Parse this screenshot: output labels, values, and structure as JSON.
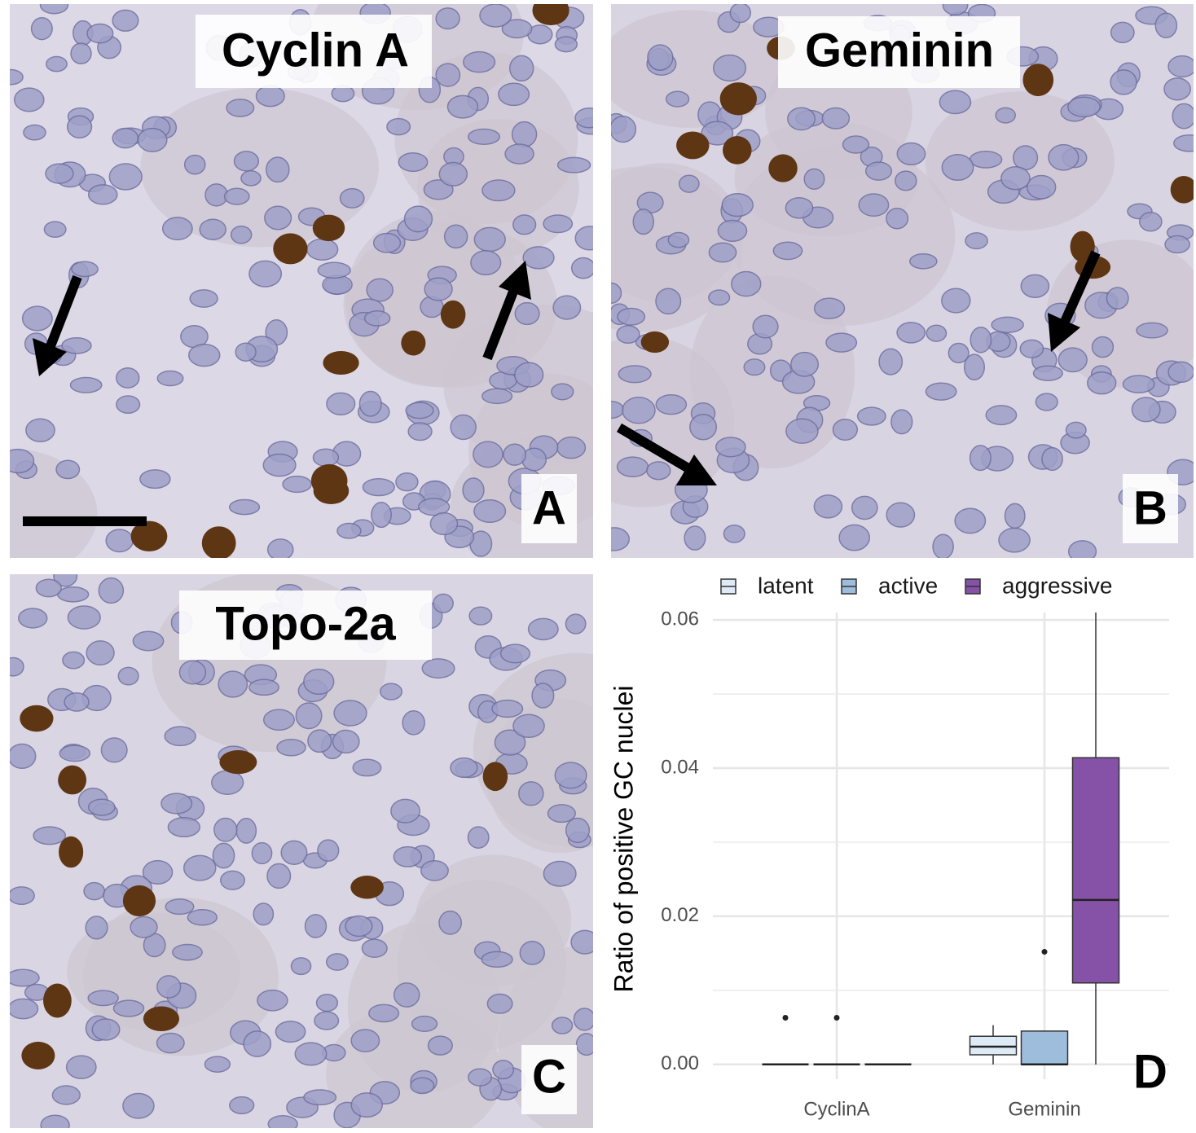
{
  "panels": [
    {
      "title": "Cyclin A",
      "label": "A"
    },
    {
      "title": "Geminin",
      "label": "B"
    },
    {
      "title": "Topo-2a",
      "label": "C"
    }
  ],
  "chart_data": {
    "type": "box",
    "panel_label": "D",
    "y_label": "Ratio of positive GC nuclei",
    "categories": [
      "CyclinA",
      "Geminin"
    ],
    "ylim": [
      -0.002,
      0.061
    ],
    "yticks": [
      {
        "value": 0,
        "label": "0.00"
      },
      0.02,
      0.04,
      0.06
    ],
    "minor_yticks": [
      0.01,
      0.03,
      0.05
    ],
    "grid": true,
    "legend": "top",
    "series": [
      {
        "name": "latent",
        "color": "#deebf7",
        "values": [
          {
            "min": 0,
            "q1": 0,
            "median": 0,
            "q3": 0,
            "max": 0,
            "outliers": [
              0.0063
            ]
          },
          {
            "min": 0,
            "q1": 0.0013,
            "median": 0.0024,
            "q3": 0.0038,
            "max": 0.0053,
            "outliers": []
          }
        ]
      },
      {
        "name": "active",
        "color": "#9ebcdc",
        "values": [
          {
            "min": 0,
            "q1": 0,
            "median": 0,
            "q3": 0,
            "max": 0,
            "outliers": [
              0.0063
            ]
          },
          {
            "min": 0,
            "q1": 0,
            "median": 0,
            "q3": 0.0045,
            "max": 0.0045,
            "outliers": [
              0.0152
            ]
          }
        ]
      },
      {
        "name": "aggressive",
        "color": "#8652a8",
        "values": [
          {
            "min": 0,
            "q1": 0,
            "median": 0,
            "q3": 0,
            "max": 0,
            "outliers": []
          },
          {
            "min": 0,
            "q1": 0.011,
            "median": 0.0222,
            "q3": 0.0414,
            "max": 0.061,
            "outliers": []
          }
        ]
      }
    ]
  }
}
